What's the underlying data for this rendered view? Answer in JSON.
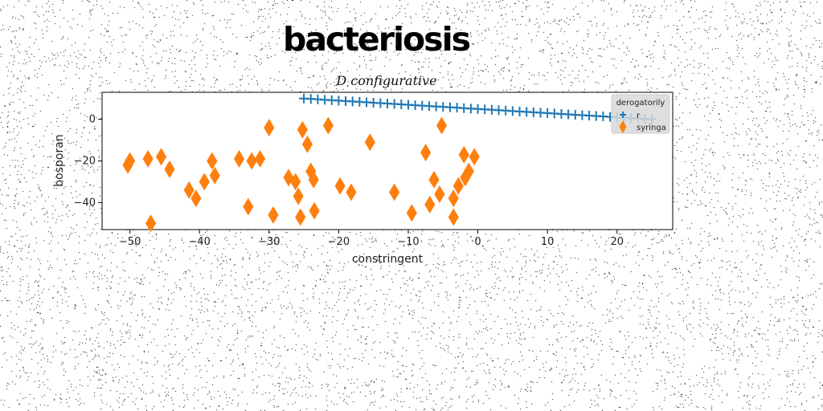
{
  "page_title": "bacteriosis",
  "chart_data": {
    "type": "scatter",
    "title": "D configurative",
    "xlabel": "constringent",
    "ylabel": "bosporan",
    "xlim": [
      -54,
      28
    ],
    "ylim": [
      -53,
      13
    ],
    "xticks": [
      -50,
      -40,
      -30,
      -20,
      -10,
      0,
      10,
      20
    ],
    "yticks": [
      0,
      -20,
      -40
    ],
    "grid": false,
    "legend": {
      "title": "derogatorily",
      "placement": "top-right"
    },
    "series": [
      {
        "name": "r",
        "marker": "plus",
        "color": "#1f77b4",
        "x": [
          -25.0,
          -24.0,
          -23.0,
          -22.0,
          -21.0,
          -20.0,
          -19.0,
          -18.0,
          -17.0,
          -16.0,
          -15.0,
          -14.0,
          -13.0,
          -12.0,
          -11.0,
          -10.0,
          -9.0,
          -8.0,
          -7.0,
          -6.0,
          -5.0,
          -4.0,
          -3.0,
          -2.0,
          -1.0,
          0.0,
          1.0,
          2.0,
          3.0,
          4.0,
          5.0,
          6.0,
          7.0,
          8.0,
          9.0,
          10.0,
          11.0,
          12.0,
          13.0,
          14.0,
          15.0,
          16.0,
          17.0,
          18.0,
          19.0,
          20.0,
          21.0,
          22.0,
          23.0,
          24.0,
          25.0
        ],
        "y": [
          10.0,
          9.8,
          9.6,
          9.4,
          9.2,
          9.0,
          8.8,
          8.6,
          8.4,
          8.2,
          8.0,
          7.8,
          7.6,
          7.4,
          7.2,
          7.0,
          6.8,
          6.6,
          6.4,
          6.2,
          6.0,
          5.8,
          5.6,
          5.4,
          5.2,
          5.0,
          4.8,
          4.6,
          4.4,
          4.2,
          4.0,
          3.8,
          3.6,
          3.4,
          3.2,
          3.0,
          2.8,
          2.6,
          2.4,
          2.2,
          2.0,
          1.8,
          1.6,
          1.4,
          1.2,
          1.0,
          0.8,
          0.6,
          0.4,
          0.2,
          0.0
        ]
      },
      {
        "name": "syringa",
        "marker": "thin_diamond",
        "color": "#ff7f0e",
        "x": [
          -50.3,
          -50.0,
          -47.4,
          -47.0,
          -45.5,
          -44.3,
          -41.5,
          -40.5,
          -39.3,
          -38.2,
          -37.8,
          -34.3,
          -33.0,
          -32.5,
          -31.3,
          -30.0,
          -29.4,
          -27.2,
          -26.2,
          -25.8,
          -25.5,
          -25.2,
          -24.5,
          -24.0,
          -23.6,
          -23.5,
          -21.5,
          -19.8,
          -18.2,
          -15.5,
          -12.0,
          -9.5,
          -7.5,
          -6.9,
          -6.3,
          -5.5,
          -5.2,
          -3.5,
          -3.5,
          -2.8,
          -2.0,
          -1.8,
          -1.3,
          -0.5
        ],
        "y": [
          -22.0,
          -20.0,
          -19.0,
          -50.0,
          -18.0,
          -24.0,
          -34.0,
          -38.0,
          -30.0,
          -20.0,
          -27.0,
          -19.0,
          -42.0,
          -20.0,
          -19.0,
          -4.0,
          -46.0,
          -28.0,
          -30.0,
          -37.0,
          -47.0,
          -5.0,
          -12.0,
          -25.0,
          -29.0,
          -44.0,
          -3.0,
          -32.0,
          -35.0,
          -11.0,
          -35.0,
          -45.0,
          -16.0,
          -41.0,
          -29.0,
          -36.0,
          -3.0,
          -47.0,
          -38.0,
          -32.0,
          -17.0,
          -28.0,
          -25.0,
          -18.0
        ]
      }
    ]
  }
}
